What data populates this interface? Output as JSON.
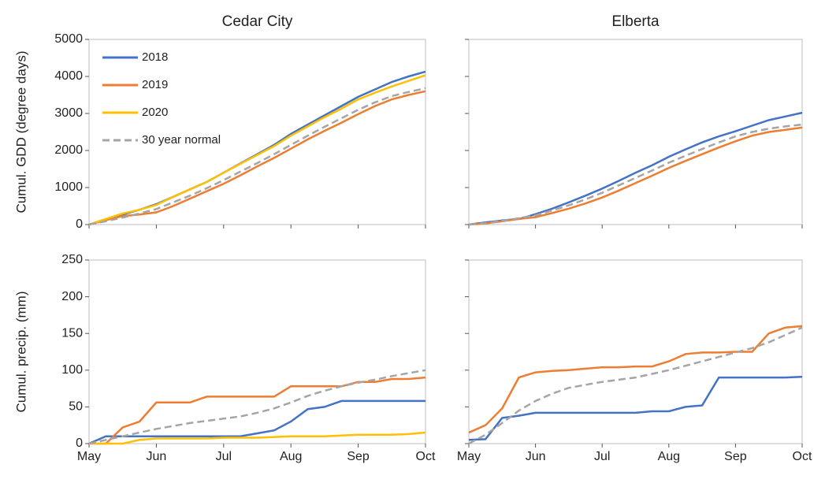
{
  "chart_data": [
    {
      "type": "line",
      "title": "Cedar City",
      "ylabel": "Cumul. GDD (degree days)",
      "ylim": [
        0,
        5000
      ],
      "yticks": [
        0,
        1000,
        2000,
        3000,
        4000,
        5000
      ],
      "legend": "upper left",
      "series": [
        {
          "name": "2018",
          "color": "#4472c4",
          "values": [
            0,
            130,
            270,
            400,
            550,
            750,
            950,
            1150,
            1400,
            1650,
            1900,
            2150,
            2450,
            2700,
            2950,
            3200,
            3450,
            3650,
            3850,
            4000,
            4130
          ]
        },
        {
          "name": "2019",
          "color": "#ed7d31",
          "values": [
            0,
            120,
            230,
            270,
            330,
            500,
            700,
            900,
            1100,
            1330,
            1570,
            1800,
            2050,
            2300,
            2530,
            2750,
            2980,
            3200,
            3380,
            3500,
            3600
          ]
        },
        {
          "name": "2020",
          "color": "#ffc000",
          "values": [
            0,
            150,
            300,
            400,
            530,
            750,
            950,
            1150,
            1400,
            1640,
            1880,
            2120,
            2400,
            2650,
            2900,
            3130,
            3380,
            3560,
            3730,
            3880,
            4030
          ]
        },
        {
          "name": "30 year normal",
          "color": "#a5a5a5",
          "dashed": true,
          "values": [
            0,
            90,
            190,
            300,
            420,
            600,
            780,
            980,
            1200,
            1430,
            1660,
            1900,
            2150,
            2400,
            2640,
            2870,
            3100,
            3300,
            3470,
            3580,
            3680
          ]
        }
      ]
    },
    {
      "type": "line",
      "title": "Elberta",
      "ylim": [
        0,
        5000
      ],
      "yticks": [
        0,
        1000,
        2000,
        3000,
        4000,
        5000
      ],
      "series": [
        {
          "color": "#4472c4",
          "values": [
            0,
            60,
            110,
            150,
            280,
            430,
            600,
            780,
            970,
            1180,
            1400,
            1600,
            1830,
            2030,
            2220,
            2380,
            2520,
            2670,
            2820,
            2920,
            3020
          ]
        },
        {
          "color": "#ed7d31",
          "values": [
            0,
            30,
            90,
            150,
            200,
            310,
            430,
            570,
            730,
            920,
            1120,
            1320,
            1530,
            1720,
            1900,
            2080,
            2250,
            2400,
            2500,
            2560,
            2620
          ]
        },
        {
          "color": "#a5a5a5",
          "dashed": true,
          "values": [
            0,
            40,
            100,
            170,
            250,
            380,
            520,
            680,
            860,
            1060,
            1260,
            1460,
            1670,
            1860,
            2040,
            2220,
            2380,
            2500,
            2590,
            2650,
            2700
          ]
        }
      ]
    },
    {
      "type": "line",
      "ylabel": "Cumul. precip. (mm)",
      "ylim": [
        0,
        250
      ],
      "yticks": [
        0,
        50,
        100,
        150,
        200,
        250
      ],
      "categories": [
        "May",
        null,
        null,
        null,
        "Jun",
        null,
        null,
        null,
        "Jul",
        null,
        null,
        null,
        "Aug",
        null,
        null,
        null,
        "Sep",
        null,
        null,
        null,
        "Oct"
      ],
      "series": [
        {
          "color": "#4472c4",
          "values": [
            0,
            10,
            10,
            10,
            10,
            10,
            10,
            10,
            10,
            10,
            14,
            18,
            30,
            47,
            50,
            58,
            58,
            58,
            58,
            58,
            58
          ]
        },
        {
          "color": "#ed7d31",
          "values": [
            0,
            0,
            22,
            30,
            56,
            56,
            56,
            64,
            64,
            64,
            64,
            64,
            78,
            78,
            78,
            78,
            84,
            84,
            88,
            88,
            90
          ]
        },
        {
          "color": "#ffc000",
          "values": [
            0,
            0,
            0,
            5,
            7,
            7,
            7,
            7,
            8,
            8,
            8,
            9,
            10,
            10,
            10,
            11,
            12,
            12,
            12,
            13,
            15
          ]
        },
        {
          "color": "#a5a5a5",
          "dashed": true,
          "values": [
            0,
            5,
            10,
            15,
            20,
            24,
            28,
            31,
            34,
            37,
            42,
            48,
            56,
            65,
            72,
            78,
            83,
            87,
            92,
            96,
            100
          ]
        }
      ]
    },
    {
      "type": "line",
      "ylim": [
        0,
        250
      ],
      "yticks": [
        0,
        50,
        100,
        150,
        200,
        250
      ],
      "categories": [
        "May",
        null,
        null,
        null,
        "Jun",
        null,
        null,
        null,
        "Jul",
        null,
        null,
        null,
        "Aug",
        null,
        null,
        null,
        "Sep",
        null,
        null,
        null,
        "Oct"
      ],
      "series": [
        {
          "color": "#4472c4",
          "values": [
            5,
            6,
            35,
            38,
            42,
            42,
            42,
            42,
            42,
            42,
            42,
            44,
            44,
            50,
            52,
            90,
            90,
            90,
            90,
            90,
            91
          ]
        },
        {
          "color": "#ed7d31",
          "values": [
            15,
            25,
            48,
            90,
            97,
            99,
            100,
            102,
            104,
            104,
            105,
            105,
            112,
            122,
            124,
            124,
            125,
            125,
            150,
            158,
            160
          ]
        },
        {
          "color": "#a5a5a5",
          "dashed": true,
          "values": [
            0,
            12,
            28,
            45,
            58,
            68,
            76,
            80,
            84,
            87,
            90,
            95,
            100,
            106,
            112,
            118,
            124,
            130,
            138,
            148,
            158
          ]
        }
      ]
    }
  ]
}
